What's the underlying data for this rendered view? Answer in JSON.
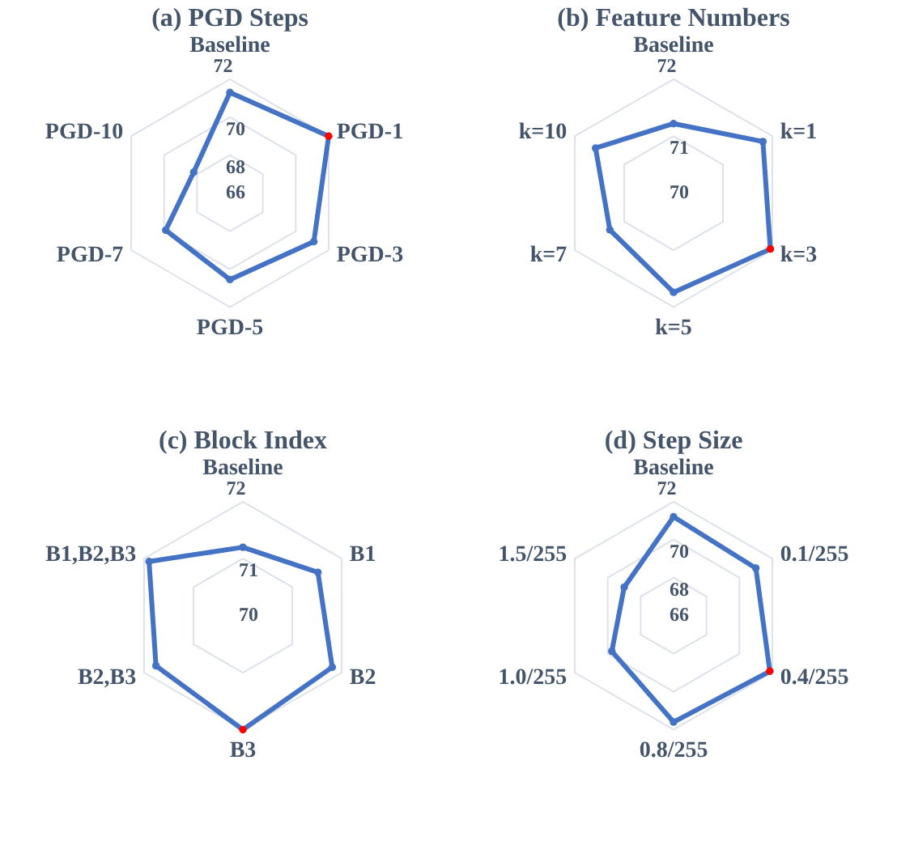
{
  "chart_data": [
    {
      "type": "radar",
      "title": "(a) PGD Steps",
      "categories": [
        "Baseline",
        "PGD-1",
        "PGD-3",
        "PGD-5",
        "PGD-7",
        "PGD-10"
      ],
      "ylim": [
        66,
        72
      ],
      "yticks": [
        66,
        68,
        70,
        72
      ],
      "grid": true,
      "marker": "circle",
      "line_style": "solid",
      "series": [
        {
          "color": "#4472c4",
          "colors": [
            "#4472c4",
            "#ff0000",
            "#4472c4",
            "#4472c4",
            "#4472c4",
            "#4472c4"
          ],
          "values": [
            71.3,
            72.0,
            71.1,
            70.55,
            69.9,
            68.2
          ]
        }
      ]
    },
    {
      "type": "radar",
      "title": "(b) Feature Numbers",
      "categories": [
        "Baseline",
        "k=1",
        "k=3",
        "k=5",
        "k=7",
        "k=10"
      ],
      "ylim": [
        70,
        72
      ],
      "yticks": [
        70,
        71,
        72
      ],
      "grid": true,
      "marker": "circle",
      "line_style": "solid",
      "series": [
        {
          "color": "#4472c4",
          "colors": [
            "#4472c4",
            "#4472c4",
            "#ff0000",
            "#4472c4",
            "#4472c4",
            "#4472c4"
          ],
          "values": [
            71.22,
            71.81,
            71.96,
            71.74,
            71.29,
            71.58
          ]
        }
      ]
    },
    {
      "type": "radar",
      "title": "(c) Block Index",
      "categories": [
        "Baseline",
        "B1",
        "B2",
        "B3",
        "B2,B3",
        "B1,B2,B3"
      ],
      "ylim": [
        70,
        72
      ],
      "yticks": [
        70,
        71,
        72
      ],
      "grid": true,
      "marker": "circle",
      "line_style": "solid",
      "series": [
        {
          "color": "#4472c4",
          "colors": [
            "#4472c4",
            "#4472c4",
            "#4472c4",
            "#ff0000",
            "#4472c4",
            "#4472c4"
          ],
          "values": [
            71.2,
            71.52,
            71.81,
            72.0,
            71.76,
            71.9
          ]
        }
      ]
    },
    {
      "type": "radar",
      "title": "(d) Step Size",
      "categories": [
        "Baseline",
        "0.1/255",
        "0.4/255",
        "0.8/255",
        "1.0/255",
        "1.5/255"
      ],
      "ylim": [
        66,
        72
      ],
      "yticks": [
        66,
        68,
        70,
        72
      ],
      "grid": true,
      "marker": "circle",
      "line_style": "solid",
      "series": [
        {
          "color": "#4472c4",
          "colors": [
            "#4472c4",
            "#4472c4",
            "#ff0000",
            "#4472c4",
            "#4472c4",
            "#4472c4"
          ],
          "values": [
            71.2,
            71.0,
            71.85,
            71.6,
            69.75,
            69.0
          ]
        }
      ]
    }
  ]
}
